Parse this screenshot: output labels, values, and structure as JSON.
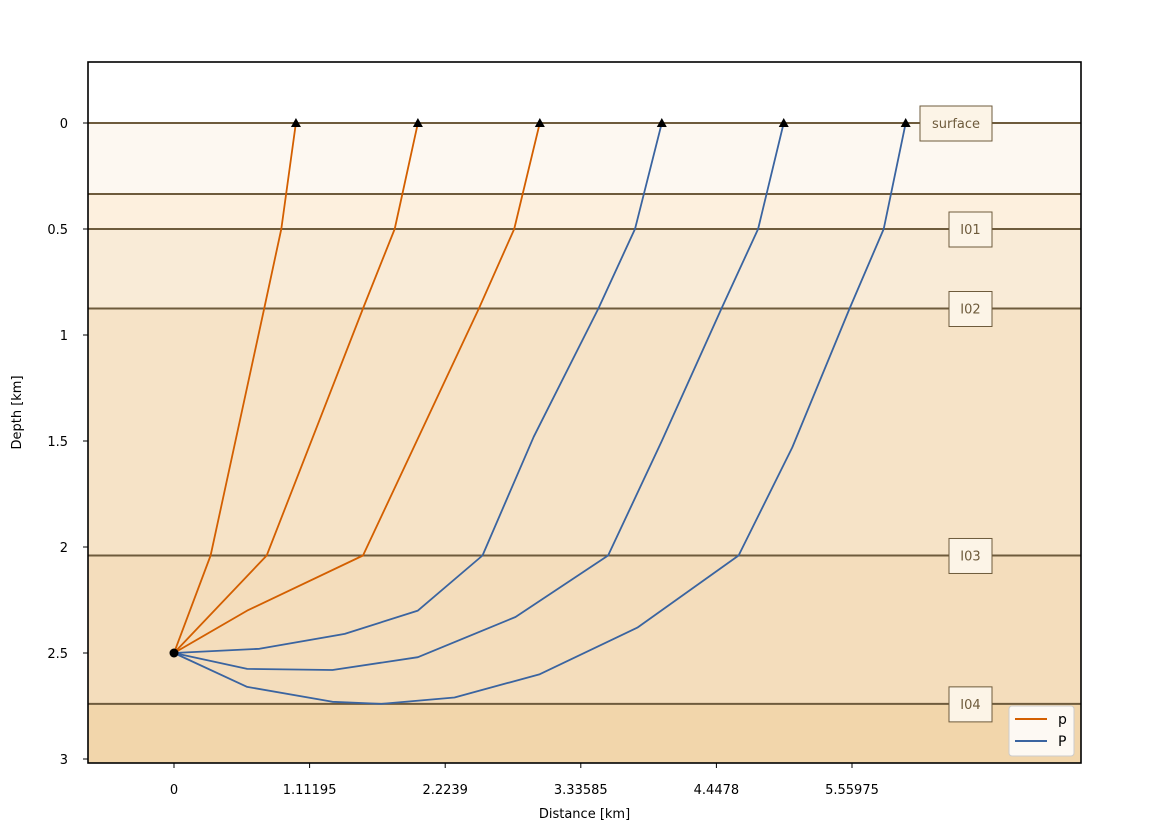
{
  "chart_data": {
    "type": "line",
    "xlabel": "Distance [km]",
    "ylabel": "Depth [km]",
    "xlim": [
      -0.63,
      6.65
    ],
    "ylim": [
      3.02,
      -0.29
    ],
    "x_ticks": [
      0,
      1.11195,
      2.2239,
      3.33585,
      4.4478,
      5.55975
    ],
    "x_tick_labels": [
      "0",
      "1.11195",
      "2.2239",
      "3.33585",
      "4.4478",
      "5.55975"
    ],
    "y_ticks": [
      0,
      0.5,
      1,
      1.5,
      2,
      2.5,
      3
    ],
    "y_tick_labels": [
      "0",
      "0.5",
      "1",
      "1.5",
      "2",
      "2.5",
      "3"
    ],
    "grid": false,
    "legend_position": "bottom-right",
    "interfaces": [
      {
        "label": "surface",
        "depth": 0
      },
      {
        "label": "",
        "depth": 0.335
      },
      {
        "label": "I01",
        "depth": 0.5
      },
      {
        "label": "I02",
        "depth": 0.875
      },
      {
        "label": "I03",
        "depth": 2.04
      },
      {
        "label": "I04",
        "depth": 2.74
      }
    ],
    "layers": [
      {
        "top": 0,
        "bottom": 0.335,
        "color": "#fdf8f1"
      },
      {
        "top": 0.335,
        "bottom": 0.5,
        "color": "#fdf0de"
      },
      {
        "top": 0.5,
        "bottom": 0.875,
        "color": "#f9ebd7"
      },
      {
        "top": 0.875,
        "bottom": 2.04,
        "color": "#f6e3c7"
      },
      {
        "top": 2.04,
        "bottom": 2.74,
        "color": "#f4ddbc"
      },
      {
        "top": 2.74,
        "bottom": 3.02,
        "color": "#f2d6ab"
      }
    ],
    "source": {
      "x": 0,
      "y": 2.5
    },
    "receivers": [
      {
        "x": 1.0,
        "y": 0
      },
      {
        "x": 2.0,
        "y": 0
      },
      {
        "x": 3.0,
        "y": 0
      },
      {
        "x": 4.0,
        "y": 0
      },
      {
        "x": 5.0,
        "y": 0
      },
      {
        "x": 6.0,
        "y": 0
      }
    ],
    "series": [
      {
        "name": "p",
        "color": "#d35f00",
        "rays": [
          {
            "x": [
              0,
              0.3,
              0.74,
              0.88,
              1.0
            ],
            "y": [
              2.5,
              2.04,
              0.875,
              0.5,
              0
            ]
          },
          {
            "x": [
              0,
              0.76,
              1.55,
              1.81,
              2.0
            ],
            "y": [
              2.5,
              2.04,
              0.875,
              0.5,
              0
            ]
          },
          {
            "x": [
              0,
              0.6,
              1.55,
              2.5,
              2.79,
              3.0
            ],
            "y": [
              2.5,
              2.3,
              2.04,
              0.875,
              0.5,
              0
            ]
          }
        ]
      },
      {
        "name": "P",
        "color": "#3a64a0",
        "rays": [
          {
            "x": [
              0,
              0.7,
              1.4,
              2.0,
              2.53,
              2.95,
              3.48,
              3.78,
              4.0
            ],
            "y": [
              2.5,
              2.48,
              2.41,
              2.3,
              2.04,
              1.48,
              0.875,
              0.5,
              0
            ]
          },
          {
            "x": [
              0,
              0.6,
              1.3,
              2.0,
              2.8,
              3.56,
              4.0,
              4.49,
              4.79,
              5.0
            ],
            "y": [
              2.5,
              2.575,
              2.58,
              2.52,
              2.33,
              2.04,
              1.5,
              0.875,
              0.5,
              0
            ]
          },
          {
            "x": [
              0,
              0.6,
              1.3,
              1.7,
              2.3,
              3.0,
              3.8,
              4.63,
              5.07,
              5.54,
              5.82,
              6.0
            ],
            "y": [
              2.5,
              2.66,
              2.73,
              2.74,
              2.71,
              2.6,
              2.38,
              2.04,
              1.53,
              0.875,
              0.5,
              0
            ]
          }
        ]
      }
    ]
  }
}
